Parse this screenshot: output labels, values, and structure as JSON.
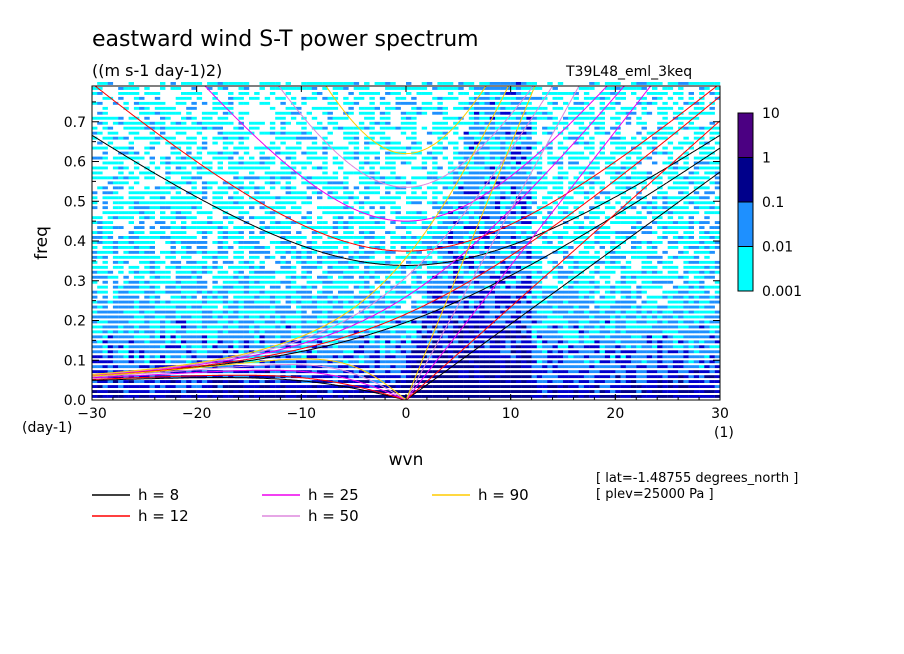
{
  "chart_data": {
    "type": "heatmap",
    "title": "eastward wind S-T power spectrum",
    "subtitle": "((m s-1 day-1)2)",
    "experiment": "T39L48_eml_3keq",
    "xlabel": "wvn",
    "ylabel": "freq",
    "x_unit": "(1)",
    "y_unit": "(day-1)",
    "xlim": [
      -30,
      30
    ],
    "ylim": [
      0,
      0.79
    ],
    "x_ticks": [
      -30,
      -20,
      -10,
      0,
      10,
      20,
      30
    ],
    "x_tick_labels": [
      "−30",
      "−20",
      "−10",
      "0",
      "10",
      "20",
      "30"
    ],
    "y_ticks": [
      0,
      0.1,
      0.2,
      0.3,
      0.4,
      0.5,
      0.6,
      0.7
    ],
    "y_tick_labels": [
      "0.0",
      "0.1",
      "0.2",
      "0.3",
      "0.4",
      "0.5",
      "0.6",
      "0.7"
    ],
    "colorbar": {
      "levels": [
        0.001,
        0.01,
        0.1,
        1,
        10
      ],
      "labels": [
        "0.001",
        "0.01",
        "0.1",
        "1",
        "10"
      ],
      "colors": [
        "#00ffff",
        "#1e90ff",
        "#0000cd",
        "#00008b",
        "#4b0082"
      ]
    },
    "dispersion_curves": [
      {
        "label": "h = 8",
        "h": 8,
        "color": "#000000"
      },
      {
        "label": "h = 12",
        "h": 12,
        "color": "#ff0000"
      },
      {
        "label": "h = 25",
        "h": 25,
        "color": "#ee00ee"
      },
      {
        "label": "h = 50",
        "h": 50,
        "color": "#dd88dd"
      },
      {
        "label": "h = 90",
        "h": 90,
        "color": "#ffcc00"
      }
    ],
    "annotations": [
      "[ lat=-1.48755 degrees_north ]",
      "[ plev=25000 Pa ]"
    ]
  }
}
